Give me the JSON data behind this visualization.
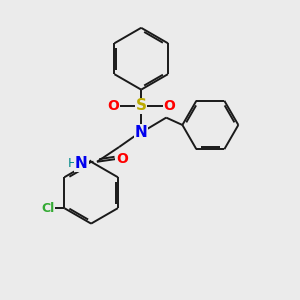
{
  "background_color": "#ebebeb",
  "bond_color": "#1a1a1a",
  "atom_colors": {
    "N": "#0000ee",
    "O": "#ff0000",
    "S": "#bbaa00",
    "Cl": "#33aa33",
    "H": "#008888",
    "C": "#1a1a1a"
  },
  "figsize": [
    3.0,
    3.0
  ],
  "dpi": 100
}
